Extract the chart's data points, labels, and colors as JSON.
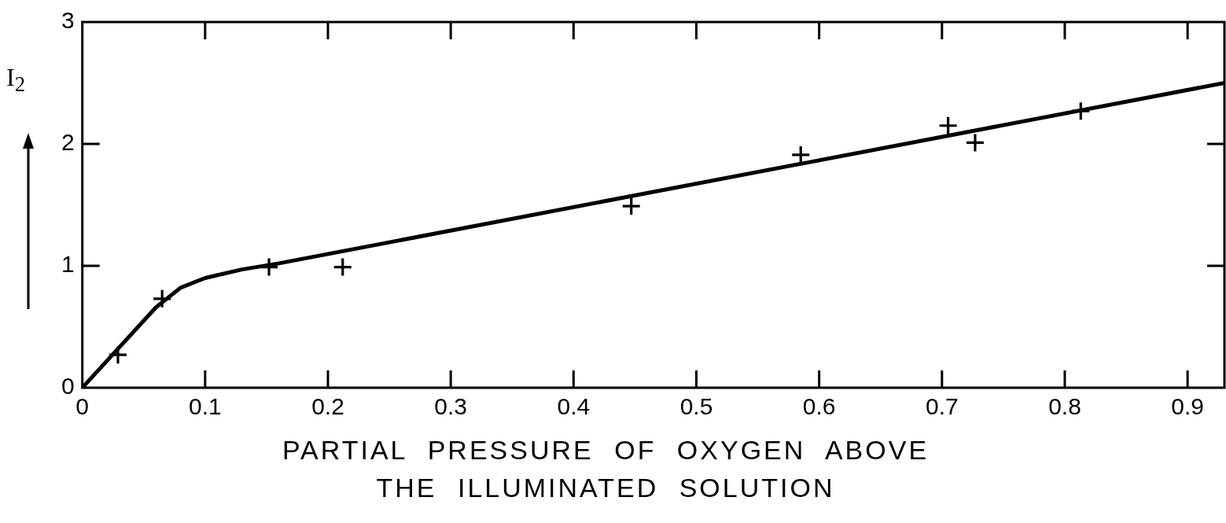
{
  "chart_data": {
    "type": "scatter",
    "xlabel": "PARTIAL PRESSURE OF OXYGEN ABOVE THE ILLUMINATED SOLUTION",
    "ylabel": "I$_{2}$",
    "series": [
      {
        "color": "#000000",
        "marker": "cross",
        "x": [
          0.029,
          0.065,
          0.152,
          0.212,
          0.447,
          0.585,
          0.705,
          0.727,
          0.813
        ],
        "values": [
          0.27,
          0.73,
          0.99,
          0.99,
          1.49,
          1.91,
          2.15,
          2.01,
          2.27
        ]
      },
      {
        "type": "line",
        "color": "#000000",
        "marker": "none",
        "line_style": "solid",
        "x": [
          0,
          0.03,
          0.06,
          0.08,
          0.1,
          0.13,
          0.16,
          0.93
        ],
        "values": [
          0,
          0.33,
          0.66,
          0.82,
          0.9,
          0.97,
          1.02,
          2.5
        ]
      }
    ],
    "xlim": [
      0,
      0.93
    ],
    "xticks": [
      0,
      0.1,
      0.2,
      0.3,
      0.4,
      0.5,
      0.6,
      0.7,
      0.8,
      0.9
    ],
    "ylim": [
      0,
      3
    ],
    "yticks": [
      0,
      1,
      2,
      3
    ],
    "grid": false,
    "legend": false
  }
}
